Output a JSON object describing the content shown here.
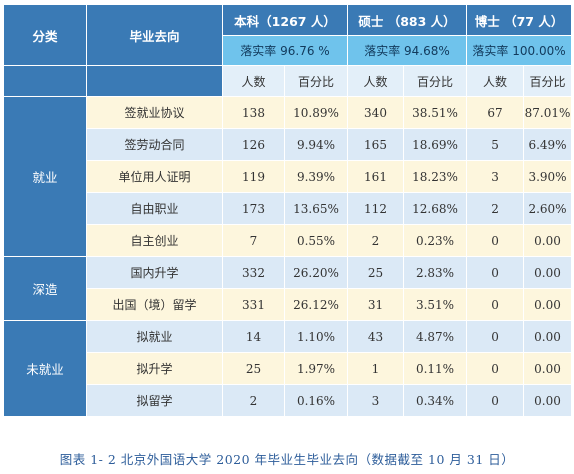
{
  "header": {
    "category": "分类",
    "destination": "毕业去向",
    "degrees": [
      {
        "title": "本科（1267 人）",
        "rate": "落实率 96.76 %"
      },
      {
        "title": "硕士 （883 人）",
        "rate": "落实率 94.68%"
      },
      {
        "title": "博士 （77 人）",
        "rate": "落实率 100.00%"
      }
    ],
    "sub": [
      "人数",
      "百分比",
      "人数",
      "百分比",
      "人数",
      "百分比"
    ]
  },
  "groups": [
    "就业",
    "深造",
    "未就业"
  ],
  "rows": [
    {
      "label": "签就业协议",
      "cells": [
        "138",
        "10.89%",
        "340",
        "38.51%",
        "67",
        "87.01%"
      ]
    },
    {
      "label": "签劳动合同",
      "cells": [
        "126",
        "9.94%",
        "165",
        "18.69%",
        "5",
        "6.49%"
      ]
    },
    {
      "label": "单位用人证明",
      "cells": [
        "119",
        "9.39%",
        "161",
        "18.23%",
        "3",
        "3.90%"
      ]
    },
    {
      "label": "自由职业",
      "cells": [
        "173",
        "13.65%",
        "112",
        "12.68%",
        "2",
        "2.60%"
      ]
    },
    {
      "label": "自主创业",
      "cells": [
        "7",
        "0.55%",
        "2",
        "0.23%",
        "0",
        "0.00"
      ]
    },
    {
      "label": "国内升学",
      "cells": [
        "332",
        "26.20%",
        "25",
        "2.83%",
        "0",
        "0.00"
      ]
    },
    {
      "label": "出国（境）留学",
      "cells": [
        "331",
        "26.12%",
        "31",
        "3.51%",
        "0",
        "0.00"
      ]
    },
    {
      "label": "拟就业",
      "cells": [
        "14",
        "1.10%",
        "43",
        "4.87%",
        "0",
        "0.00"
      ]
    },
    {
      "label": "拟升学",
      "cells": [
        "25",
        "1.97%",
        "1",
        "0.11%",
        "0",
        "0.00"
      ]
    },
    {
      "label": "拟留学",
      "cells": [
        "2",
        "0.16%",
        "3",
        "0.34%",
        "0",
        "0.00"
      ]
    }
  ],
  "caption": "图表 1- 2  北京外国语大学 2020 年毕业生毕业去向（数据截至 10 月 31 日）",
  "colors": {
    "header_dark": "#3a7ab5",
    "header_light": "#6fc3ec",
    "row_yellow": "#fdf6dd",
    "row_blue": "#dbe9f6",
    "caption": "#2d5d9a"
  }
}
